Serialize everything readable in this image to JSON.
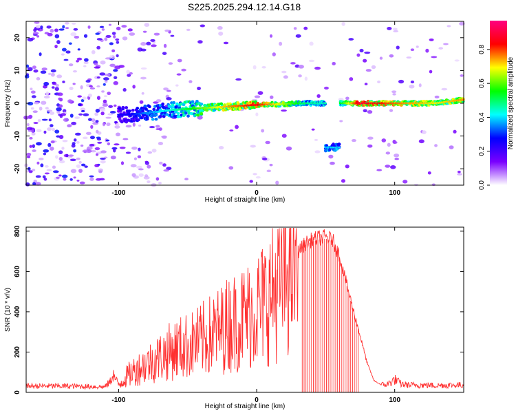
{
  "title": "S225.2025.294.12.14.G18",
  "chart_data": [
    {
      "type": "heatmap",
      "xlabel": "Height of straight line (km)",
      "ylabel": "Frequency (Hz)",
      "xlim": [
        -167,
        150
      ],
      "ylim": [
        -25,
        25
      ],
      "xticks": [
        -100,
        0,
        100
      ],
      "yticks": [
        -20,
        -10,
        0,
        10,
        20
      ],
      "colorbar": {
        "label": "Normalized spectral amplitude",
        "range": [
          0,
          0.97
        ],
        "ticks": [
          0.0,
          0.2,
          0.4,
          0.6,
          0.8
        ],
        "tick_labels": [
          "0.0",
          "0.2",
          "0.4",
          "0.6",
          "0.8"
        ],
        "colors": [
          "#ffffff",
          "#7a00ff",
          "#0000ff",
          "#00ffff",
          "#00ff00",
          "#ffff00",
          "#ff0000",
          "#ff0080"
        ]
      },
      "ridge": [
        {
          "x": -95,
          "freq": -3.5,
          "amp": 0.25
        },
        {
          "x": -80,
          "freq": -3.0,
          "amp": 0.35
        },
        {
          "x": -60,
          "freq": -2.0,
          "amp": 0.45
        },
        {
          "x": -40,
          "freq": -1.5,
          "amp": 0.6
        },
        {
          "x": -20,
          "freq": -1.0,
          "amp": 0.75
        },
        {
          "x": 0,
          "freq": -0.5,
          "amp": 0.85
        },
        {
          "x": 15,
          "freq": -0.3,
          "amp": 0.7
        },
        {
          "x": 35,
          "freq": 0.0,
          "amp": 0.5
        },
        {
          "x": 48,
          "freq": 0.0,
          "amp": 0.45
        },
        {
          "x": 62,
          "freq": 0.0,
          "amp": 0.55
        },
        {
          "x": 75,
          "freq": 0.0,
          "amp": 0.9
        },
        {
          "x": 95,
          "freq": 0.0,
          "amp": 0.8
        },
        {
          "x": 110,
          "freq": 0.0,
          "amp": 0.75
        },
        {
          "x": 130,
          "freq": 0.0,
          "amp": 0.7
        },
        {
          "x": 148,
          "freq": 1.0,
          "amp": 0.75
        }
      ],
      "secondary_feature": {
        "x_range": [
          50,
          60
        ],
        "freq": -13.5,
        "amp": 0.4
      }
    },
    {
      "type": "line",
      "xlabel": "Height of straight line (km)",
      "ylabel": "SNR (10 * v/v)",
      "xlim": [
        -167,
        150
      ],
      "ylim": [
        0,
        820
      ],
      "xticks": [
        -100,
        0,
        100
      ],
      "yticks": [
        0,
        200,
        400,
        600,
        800
      ],
      "color": "#ff3030",
      "series": [
        {
          "x": [
            -167,
            -140,
            -110,
            -106,
            -104,
            -100,
            -95,
            -90,
            -85,
            -80,
            -75,
            -70,
            -65,
            -60,
            -55,
            -50,
            -45,
            -40,
            -35,
            -30,
            -25,
            -20,
            -15,
            -10,
            -5,
            0,
            5,
            10,
            15,
            20,
            25,
            30,
            35,
            40,
            45,
            50,
            55,
            60,
            65,
            70,
            75,
            80,
            85,
            90,
            95,
            100,
            105,
            110,
            120,
            130,
            140,
            150
          ],
          "y": [
            35,
            35,
            30,
            60,
            100,
            40,
            80,
            110,
            130,
            150,
            170,
            190,
            210,
            230,
            240,
            250,
            260,
            280,
            300,
            320,
            340,
            370,
            380,
            400,
            420,
            450,
            480,
            520,
            570,
            620,
            680,
            720,
            760,
            780,
            790,
            795,
            780,
            700,
            560,
            420,
            290,
            150,
            60,
            40,
            45,
            70,
            45,
            40,
            40,
            38,
            40,
            40
          ]
        }
      ]
    }
  ]
}
